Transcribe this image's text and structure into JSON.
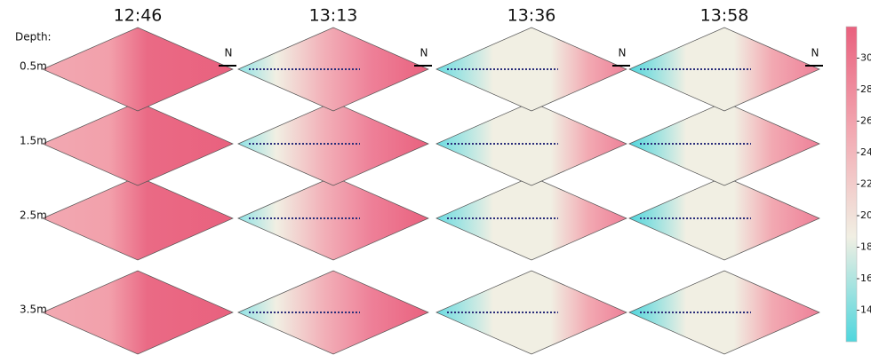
{
  "chart_data": {
    "type": "contour-panels",
    "columns": [
      "12:46",
      "13:13",
      "13:36",
      "13:58"
    ],
    "row_heading": "Depth:",
    "rows": [
      "0.5m",
      "1.5m",
      "2.5m",
      "3.5m"
    ],
    "north_label": "N",
    "colorbar": {
      "ylim": [
        12,
        32
      ],
      "yticks": [
        14,
        16,
        18,
        20,
        22,
        24,
        26,
        28,
        30
      ],
      "colors": [
        "#4fd6dd",
        "#f1efe3",
        "#f2a9b2",
        "#e9617e"
      ]
    }
  }
}
